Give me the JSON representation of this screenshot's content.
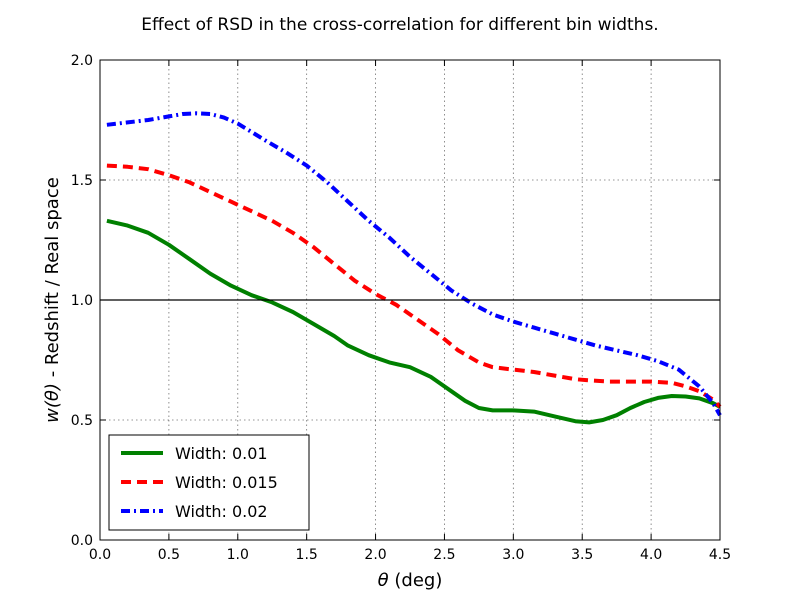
{
  "chart_data": {
    "type": "line",
    "title": "Effect of RSD in the cross-correlation for different bin widths.",
    "xlabel_symbol": "θ",
    "xlabel_unit": " (deg)",
    "ylabel_symbol": "w(θ)",
    "ylabel_rest": " - Redshift / Real space",
    "xlim": [
      0.0,
      4.5
    ],
    "ylim": [
      0.0,
      2.0
    ],
    "xticks": [
      "0.0",
      "0.5",
      "1.0",
      "1.5",
      "2.0",
      "2.5",
      "3.0",
      "3.5",
      "4.0",
      "4.5"
    ],
    "yticks": [
      "0.0",
      "0.5",
      "1.0",
      "1.5",
      "2.0"
    ],
    "grid": true,
    "reference_line": 1.0,
    "legend_position": "lower-left",
    "series": [
      {
        "name": "Width: 0.01",
        "color": "#008000",
        "style": "solid",
        "x": [
          0.05,
          0.2,
          0.35,
          0.5,
          0.65,
          0.8,
          0.95,
          1.1,
          1.25,
          1.4,
          1.55,
          1.7,
          1.8,
          1.95,
          2.1,
          2.25,
          2.4,
          2.55,
          2.65,
          2.75,
          2.85,
          3.0,
          3.15,
          3.3,
          3.45,
          3.55,
          3.65,
          3.75,
          3.85,
          3.95,
          4.05,
          4.15,
          4.25,
          4.35,
          4.45,
          4.5
        ],
        "y": [
          1.33,
          1.31,
          1.28,
          1.23,
          1.17,
          1.11,
          1.06,
          1.02,
          0.99,
          0.95,
          0.9,
          0.85,
          0.81,
          0.77,
          0.74,
          0.72,
          0.68,
          0.62,
          0.58,
          0.55,
          0.54,
          0.54,
          0.535,
          0.515,
          0.495,
          0.49,
          0.5,
          0.52,
          0.55,
          0.575,
          0.592,
          0.6,
          0.598,
          0.59,
          0.57,
          0.555
        ]
      },
      {
        "name": "Width: 0.015",
        "color": "#ff0000",
        "style": "dashed",
        "x": [
          0.05,
          0.2,
          0.35,
          0.5,
          0.65,
          0.8,
          0.95,
          1.1,
          1.25,
          1.4,
          1.55,
          1.7,
          1.85,
          2.0,
          2.15,
          2.3,
          2.45,
          2.6,
          2.75,
          2.85,
          3.0,
          3.15,
          3.3,
          3.45,
          3.55,
          3.7,
          3.85,
          4.0,
          4.15,
          4.25,
          4.35,
          4.45,
          4.5
        ],
        "y": [
          1.56,
          1.555,
          1.545,
          1.52,
          1.49,
          1.45,
          1.41,
          1.37,
          1.33,
          1.28,
          1.22,
          1.15,
          1.08,
          1.025,
          0.98,
          0.92,
          0.86,
          0.79,
          0.74,
          0.72,
          0.71,
          0.7,
          0.685,
          0.67,
          0.665,
          0.66,
          0.66,
          0.66,
          0.655,
          0.64,
          0.62,
          0.585,
          0.555
        ]
      },
      {
        "name": "Width: 0.02",
        "color": "#0000ff",
        "style": "dashdot",
        "x": [
          0.05,
          0.2,
          0.35,
          0.5,
          0.6,
          0.7,
          0.8,
          0.9,
          1.0,
          1.1,
          1.2,
          1.35,
          1.5,
          1.65,
          1.8,
          1.95,
          2.1,
          2.25,
          2.4,
          2.55,
          2.7,
          2.85,
          3.0,
          3.15,
          3.3,
          3.45,
          3.6,
          3.75,
          3.9,
          4.05,
          4.2,
          4.35,
          4.45,
          4.5
        ],
        "y": [
          1.73,
          1.74,
          1.75,
          1.765,
          1.775,
          1.778,
          1.775,
          1.76,
          1.735,
          1.7,
          1.665,
          1.615,
          1.56,
          1.49,
          1.41,
          1.33,
          1.26,
          1.18,
          1.11,
          1.04,
          0.985,
          0.94,
          0.91,
          0.885,
          0.86,
          0.835,
          0.81,
          0.79,
          0.77,
          0.745,
          0.71,
          0.64,
          0.57,
          0.52
        ]
      }
    ]
  }
}
